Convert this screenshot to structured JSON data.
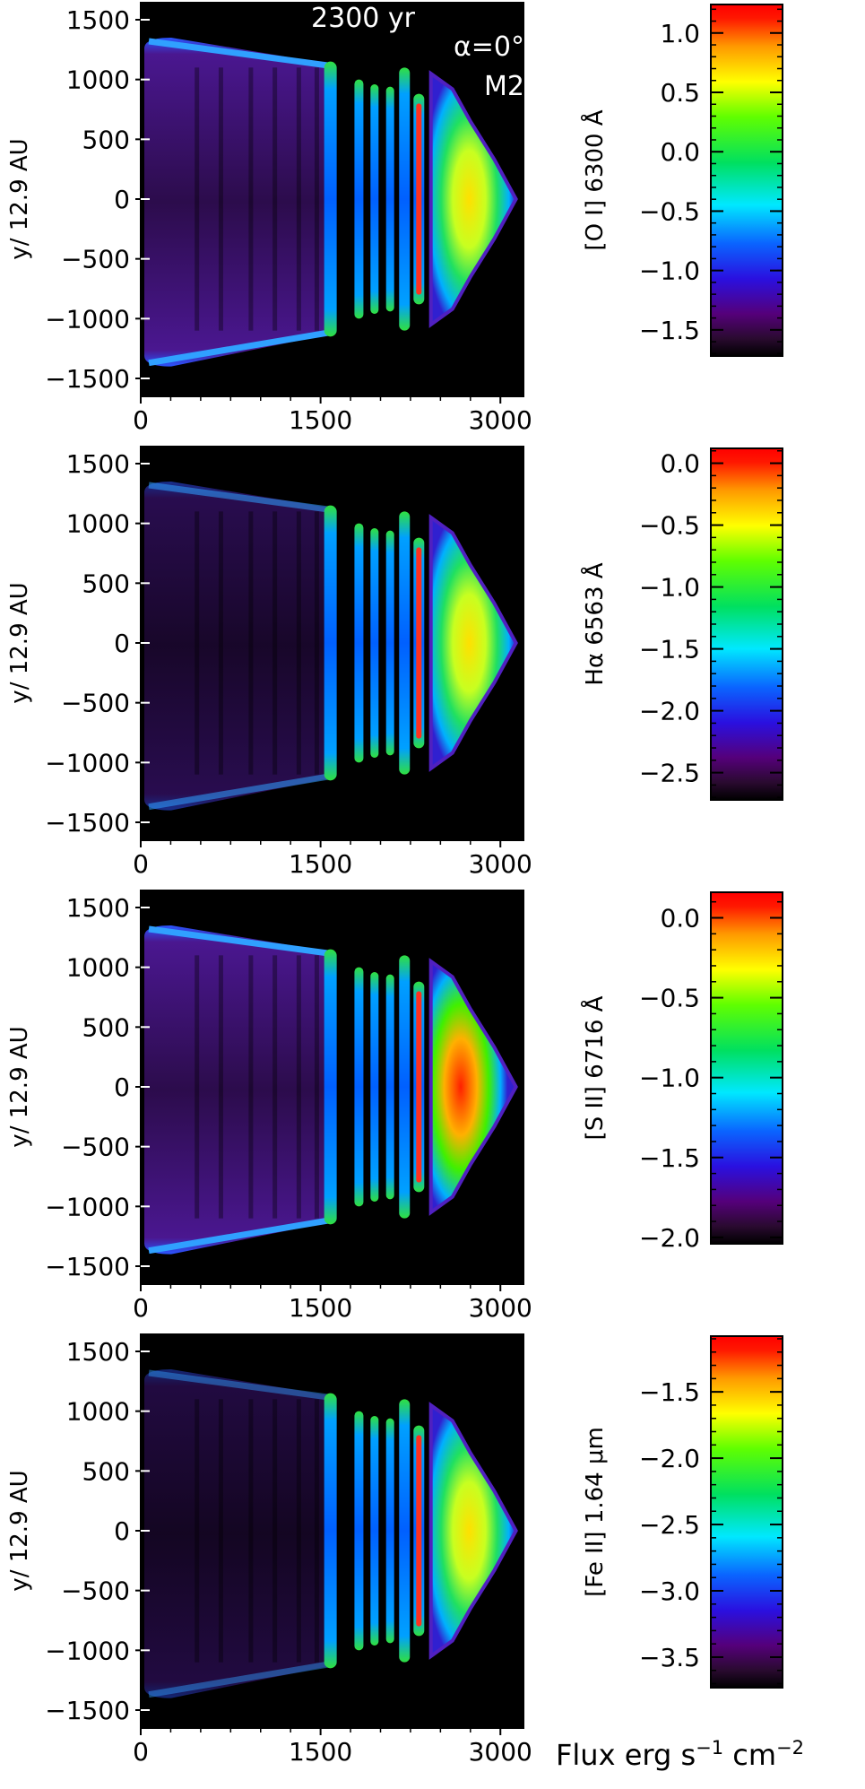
{
  "figure": {
    "annotation": [
      "2300 yr",
      "α=0°",
      "M2"
    ],
    "footer_label": {
      "main": "Flux  erg s",
      "exp1": "−1",
      "mid": " cm",
      "exp2": "−2"
    }
  },
  "chart_data": [
    {
      "type": "heatmap",
      "ylabel": "y/ 12.9 AU",
      "xticks": [
        "0",
        "1500",
        "3000"
      ],
      "yticks": [
        "1500",
        "1000",
        "500",
        "0",
        "−500",
        "−1000",
        "−1500"
      ],
      "xlim": [
        0,
        3200
      ],
      "ylim": [
        -1650,
        1650
      ],
      "colorbar": {
        "label": "[O I] 6300 Å",
        "ticks": [
          "1.0",
          "0.5",
          "0.0",
          "−0.5",
          "−1.0",
          "−1.5"
        ],
        "tick_values": [
          1.0,
          0.5,
          0.0,
          -0.5,
          -1.0,
          -1.5
        ],
        "range": [
          -1.72,
          1.24
        ]
      }
    },
    {
      "type": "heatmap",
      "ylabel": "y/ 12.9 AU",
      "xticks": [
        "0",
        "1500",
        "3000"
      ],
      "yticks": [
        "1500",
        "1000",
        "500",
        "0",
        "−500",
        "−1000",
        "−1500"
      ],
      "xlim": [
        0,
        3200
      ],
      "ylim": [
        -1650,
        1650
      ],
      "colorbar": {
        "label": "Hα 6563 Å",
        "ticks": [
          "0.0",
          "−0.5",
          "−1.0",
          "−1.5",
          "−2.0",
          "−2.5"
        ],
        "tick_values": [
          0.0,
          -0.5,
          -1.0,
          -1.5,
          -2.0,
          -2.5
        ],
        "range": [
          -2.72,
          0.12
        ]
      }
    },
    {
      "type": "heatmap",
      "ylabel": "y/ 12.9 AU",
      "xticks": [
        "0",
        "1500",
        "3000"
      ],
      "yticks": [
        "1500",
        "1000",
        "500",
        "0",
        "−500",
        "−1000",
        "−1500"
      ],
      "xlim": [
        0,
        3200
      ],
      "ylim": [
        -1650,
        1650
      ],
      "colorbar": {
        "label": "[S II] 6716 Å",
        "ticks": [
          "0.0",
          "−0.5",
          "−1.0",
          "−1.5",
          "−2.0"
        ],
        "tick_values": [
          0.0,
          -0.5,
          -1.0,
          -1.5,
          -2.0
        ],
        "range": [
          -2.04,
          0.16
        ]
      }
    },
    {
      "type": "heatmap",
      "ylabel": "y/ 12.9 AU",
      "xticks": [
        "0",
        "1500",
        "3000"
      ],
      "yticks": [
        "1500",
        "1000",
        "500",
        "0",
        "−500",
        "−1000",
        "−1500"
      ],
      "xlim": [
        0,
        3200
      ],
      "ylim": [
        -1650,
        1650
      ],
      "colorbar": {
        "label": "[Fe II] 1.64 μm",
        "ticks": [
          "−1.5",
          "−2.0",
          "−2.5",
          "−3.0",
          "−3.5"
        ],
        "tick_values": [
          -1.5,
          -2.0,
          -2.5,
          -3.0,
          -3.5
        ],
        "range": [
          -3.73,
          -1.08
        ]
      }
    }
  ]
}
